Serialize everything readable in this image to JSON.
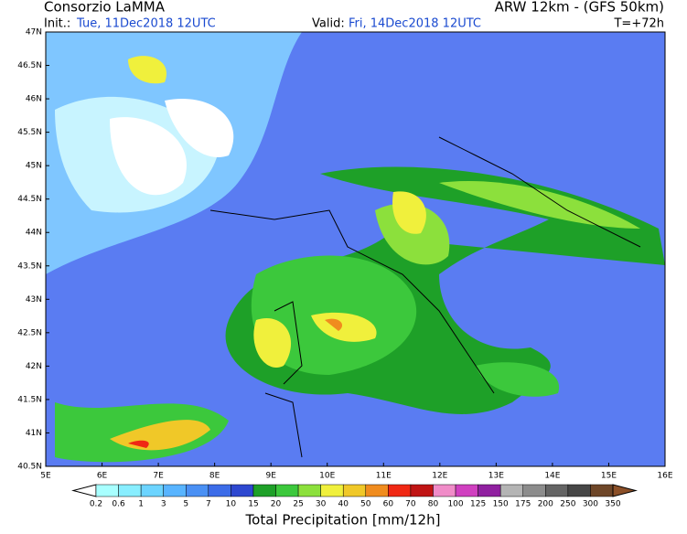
{
  "header": {
    "title": "Consorzio LaMMA",
    "model": "ARW 12km - (GFS 50km)",
    "init_label": "Init.:",
    "init_value": "Tue, 11Dec2018 12UTC",
    "valid_label": "Valid:",
    "valid_value": "Fri, 14Dec2018 12UTC",
    "lead": "T=+72h"
  },
  "map": {
    "lat_labels": [
      "47N",
      "46.5N",
      "46N",
      "45.5N",
      "45N",
      "44.5N",
      "44N",
      "43.5N",
      "43N",
      "42.5N",
      "42N",
      "41.5N",
      "41N",
      "40.5N"
    ],
    "lon_labels": [
      "5E",
      "6E",
      "7E",
      "8E",
      "9E",
      "10E",
      "11E",
      "12E",
      "13E",
      "14E",
      "15E",
      "16E"
    ]
  },
  "legend": {
    "labels": [
      "0.2",
      "0.6",
      "1",
      "3",
      "5",
      "7",
      "10",
      "15",
      "20",
      "25",
      "30",
      "40",
      "50",
      "60",
      "70",
      "80",
      "100",
      "125",
      "150",
      "175",
      "200",
      "250",
      "300",
      "350"
    ],
    "colors": [
      "#ffffff",
      "#a8ffff",
      "#88eeff",
      "#6cd4ff",
      "#58b4ff",
      "#4a90f4",
      "#3c6ce8",
      "#2e48d0",
      "#1ea028",
      "#3cc83c",
      "#8ce03c",
      "#f0f03c",
      "#f0c828",
      "#f08c1e",
      "#f02814",
      "#c01414",
      "#f08cc8",
      "#d040c0",
      "#9020a0",
      "#b4b4b4",
      "#8c8c8c",
      "#646464",
      "#464646",
      "#6e4628",
      "#8c5028"
    ],
    "title": "Total Precipitation [mm/12h]"
  }
}
